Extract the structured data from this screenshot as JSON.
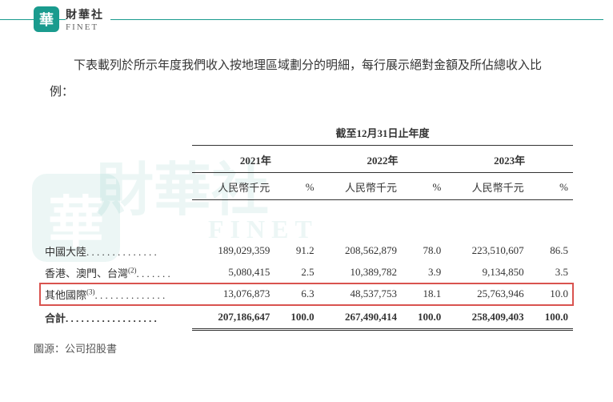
{
  "brand": {
    "logo_char": "華",
    "cn": "財華社",
    "en": "FINET"
  },
  "intro": "下表載列於所示年度我們收入按地理區域劃分的明細，每行展示絕對金額及所佔總收入比例：",
  "table": {
    "period_header": "截至12月31日止年度",
    "years": [
      "2021年",
      "2022年",
      "2023年"
    ],
    "unit": "人民幣千元",
    "pct": "%",
    "rows": [
      {
        "label": "中國大陸",
        "sup": "",
        "dots": " . . . . . . . . . . . . . .",
        "v1": "189,029,359",
        "p1": "91.2",
        "v2": "208,562,879",
        "p2": "78.0",
        "v3": "223,510,607",
        "p3": "86.5",
        "highlight": false
      },
      {
        "label": "香港、澳門、台灣",
        "sup": "(2)",
        "dots": " . . . . . . .",
        "v1": "5,080,415",
        "p1": "2.5",
        "v2": "10,389,782",
        "p2": "3.9",
        "v3": "9,134,850",
        "p3": "3.5",
        "highlight": false
      },
      {
        "label": "其他國際",
        "sup": "(3)",
        "dots": " . . . . . . . . . . . . . .",
        "v1": "13,076,873",
        "p1": "6.3",
        "v2": "48,537,753",
        "p2": "18.1",
        "v3": "25,763,946",
        "p3": "10.0",
        "highlight": true
      }
    ],
    "total": {
      "label": "合計",
      "dots": " . . . . . . . . . . . . . . . . . .",
      "v1": "207,186,647",
      "p1": "100.0",
      "v2": "267,490,414",
      "p2": "100.0",
      "v3": "258,409,403",
      "p3": "100.0"
    }
  },
  "source": "圖源：公司招股書",
  "colors": {
    "brand": "#1a9b8e",
    "highlight_border": "#d9534f",
    "text": "#333333"
  }
}
